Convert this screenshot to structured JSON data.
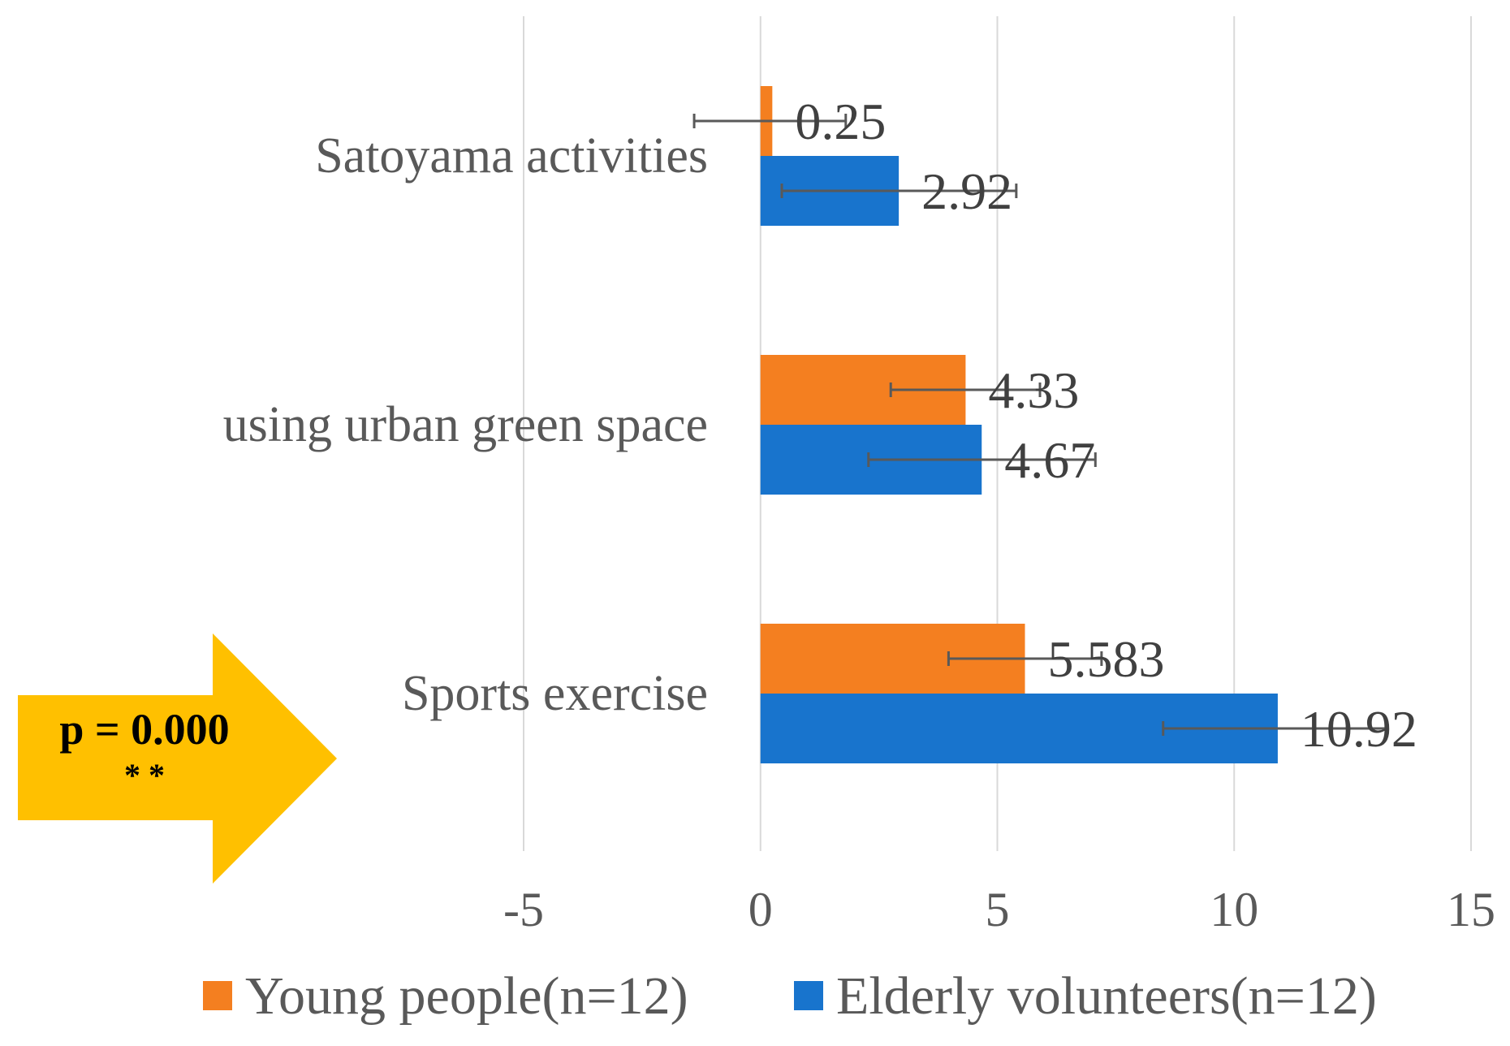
{
  "chart_data": {
    "type": "bar",
    "orientation": "horizontal",
    "categories": [
      "Satoyama activities",
      "using urban green space",
      "Sports exercise"
    ],
    "series": [
      {
        "name": "Young people(n=12)",
        "color": "#F47F20",
        "values": [
          0.25,
          4.33,
          5.583
        ],
        "labels": [
          "0.25",
          "4.33",
          "5.583"
        ],
        "error_bars": [
          [
            -1.4,
            1.8
          ],
          [
            2.75,
            5.9
          ],
          [
            3.97,
            7.2
          ]
        ]
      },
      {
        "name": "Elderly volunteers(n=12)",
        "color": "#1874CD",
        "values": [
          2.92,
          4.67,
          10.92
        ],
        "labels": [
          "2.92",
          "4.67",
          "10.92"
        ],
        "error_bars": [
          [
            0.45,
            5.4
          ],
          [
            2.28,
            7.07
          ],
          [
            8.5,
            13.2
          ]
        ]
      }
    ],
    "xlim": [
      -5,
      15
    ],
    "xticks": [
      -5,
      0,
      5,
      10,
      15
    ],
    "xtick_labels": [
      "-5",
      "0",
      "5",
      "10",
      "15"
    ],
    "grid": true,
    "legend_position": "bottom",
    "annotation": {
      "text": "p = 0.000",
      "stars": "* *",
      "shape": "right-arrow",
      "color": "#FFC000",
      "target_category": "Sports exercise"
    }
  }
}
